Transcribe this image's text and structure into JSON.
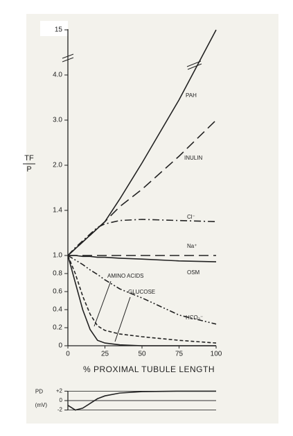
{
  "chart_data": [
    {
      "type": "line",
      "x_label": "% PROXIMAL TUBULE LENGTH",
      "y_label_top": "TF",
      "y_label_bottom": "P",
      "axis_break": true,
      "x": [
        0,
        5,
        10,
        15,
        20,
        25,
        35,
        50,
        75,
        100
      ],
      "xlim": [
        0,
        100
      ],
      "xticks": [
        0,
        25,
        50,
        75,
        100
      ],
      "ylim": [
        0,
        15
      ],
      "yticks": [
        0,
        0.2,
        0.4,
        0.6,
        0.8,
        {
          "value": 1,
          "label": "1.0"
        },
        1.4,
        {
          "value": 2,
          "label": "2.0"
        },
        {
          "value": 3,
          "label": "3.0"
        },
        {
          "value": 4,
          "label": "4.0"
        },
        15
      ],
      "series": [
        {
          "name": "PAH",
          "color": "#222",
          "linestyle": "solid",
          "values": [
            1,
            1.06,
            1.12,
            1.18,
            1.24,
            1.3,
            1.55,
            2.05,
            3.45,
            15
          ]
        },
        {
          "name": "INULIN",
          "color": "#222",
          "linestyle": "dashed",
          "values": [
            1,
            1.06,
            1.12,
            1.18,
            1.24,
            1.3,
            1.45,
            1.68,
            2.2,
            3.0
          ]
        },
        {
          "name": "Cl⁻",
          "color": "#222",
          "linestyle": "dashdot",
          "values": [
            1,
            1.07,
            1.13,
            1.19,
            1.25,
            1.28,
            1.31,
            1.32,
            1.31,
            1.3
          ]
        },
        {
          "name": "Na⁺",
          "color": "#222",
          "linestyle": "dashed",
          "values": [
            1,
            1,
            1,
            1,
            1,
            1,
            1,
            1,
            1,
            1
          ]
        },
        {
          "name": "OSM",
          "color": "#222",
          "linestyle": "solid",
          "values": [
            1,
            1,
            0.99,
            0.99,
            0.98,
            0.98,
            0.97,
            0.96,
            0.94,
            0.93
          ]
        },
        {
          "name": "HCO₃⁻",
          "color": "#222",
          "linestyle": "dashdotdot",
          "values": [
            1,
            0.95,
            0.9,
            0.84,
            0.79,
            0.73,
            0.63,
            0.53,
            0.34,
            0.24
          ]
        },
        {
          "name": "AMINO ACIDS",
          "color": "#222",
          "linestyle": "shortdash",
          "values": [
            1,
            0.8,
            0.55,
            0.35,
            0.22,
            0.17,
            0.13,
            0.1,
            0.06,
            0.03
          ]
        },
        {
          "name": "GLUCOSE",
          "color": "#222",
          "linestyle": "solid",
          "values": [
            1,
            0.7,
            0.4,
            0.18,
            0.06,
            0.03,
            0.01,
            0,
            0,
            0
          ]
        }
      ]
    },
    {
      "type": "line",
      "y_label_top": "PD",
      "y_label_bottom": "(mV)",
      "grid": true,
      "x": [
        0,
        5,
        10,
        15,
        20,
        25,
        35,
        50,
        75,
        100
      ],
      "xlim": [
        0,
        100
      ],
      "ylim": [
        -2.5,
        2.5
      ],
      "yticks": [
        {
          "value": 2,
          "label": "+2"
        },
        0,
        -2
      ],
      "series": [
        {
          "name": "PD",
          "color": "#222",
          "linestyle": "solid",
          "values": [
            -1,
            -2,
            -1.6,
            -0.6,
            0.4,
            1,
            1.6,
            1.9,
            2,
            2
          ]
        }
      ]
    }
  ]
}
